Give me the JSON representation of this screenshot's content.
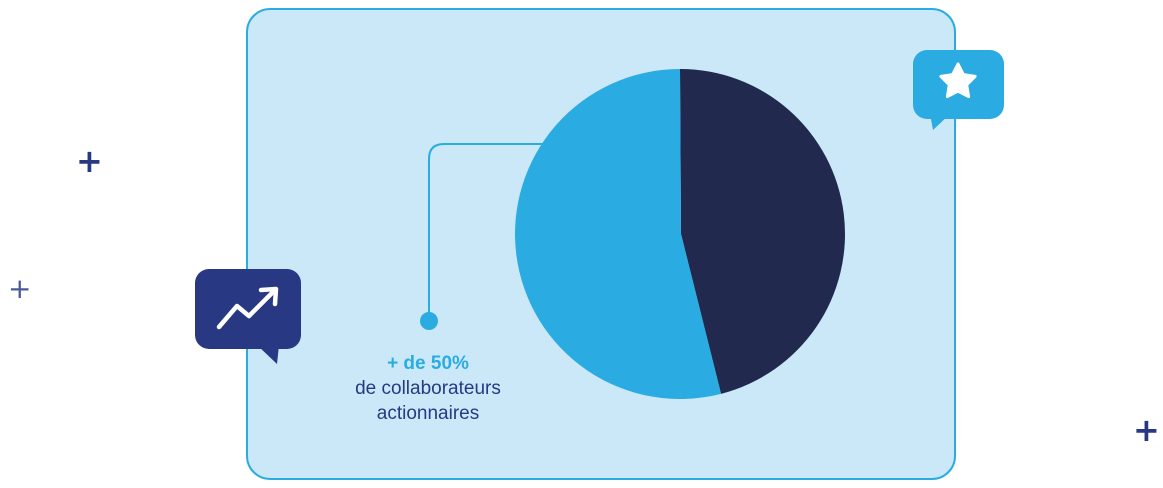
{
  "chart_data": {
    "type": "pie",
    "slices": [
      {
        "label": "collaborateurs actionnaires",
        "value": 54,
        "color": "#2aace3"
      },
      {
        "label": "",
        "value": 46,
        "color": "#21294e"
      }
    ],
    "annotation": {
      "headline": "+ de 50%",
      "line1": "de collaborateurs",
      "line2": "actionnaires"
    }
  },
  "colors": {
    "panel_bg": "#cbe8f8",
    "panel_border": "#2aace3",
    "accent": "#2aace3",
    "dark": "#21294e",
    "navy": "#283883"
  },
  "decor": {
    "plus_glyph": "+",
    "icons": [
      "trend-up-icon",
      "star-icon"
    ]
  }
}
